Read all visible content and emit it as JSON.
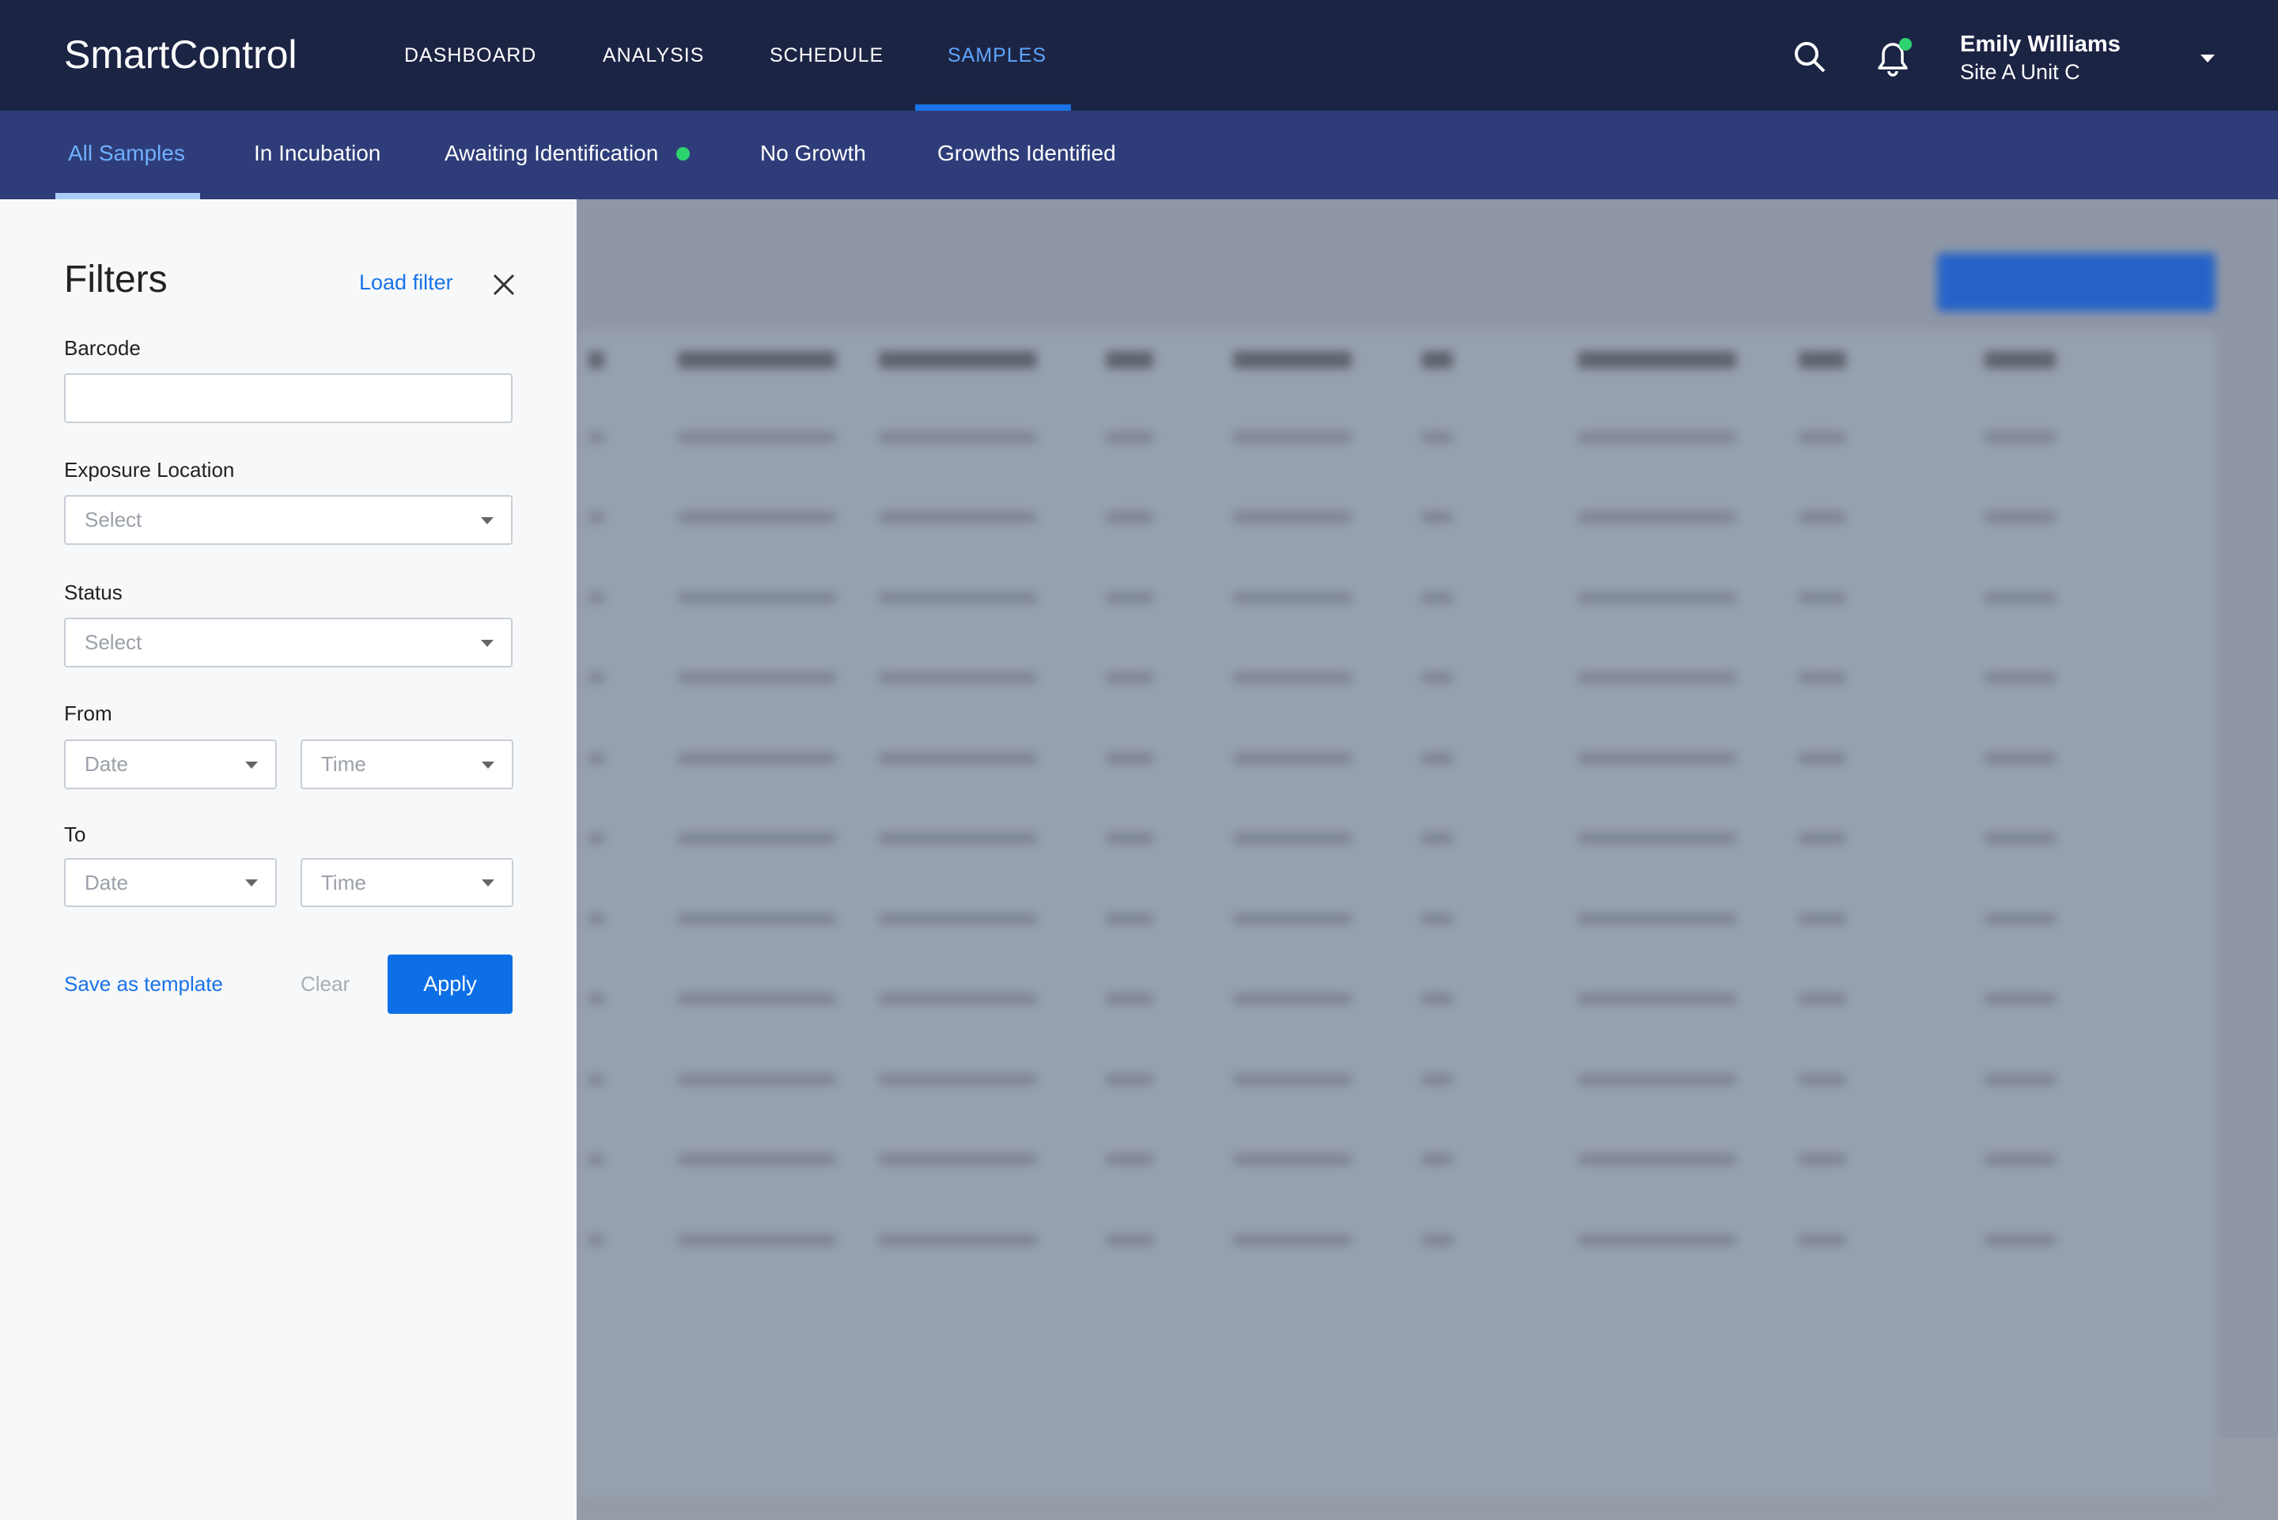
{
  "header": {
    "logo": "SmartControl",
    "nav": [
      "DASHBOARD",
      "ANALYSIS",
      "SCHEDULE",
      "SAMPLES"
    ],
    "user": {
      "name": "Emily Williams",
      "location": "Site A Unit C"
    }
  },
  "tabs": [
    "All Samples",
    "In Incubation",
    "Awaiting Identification",
    "No Growth",
    "Growths Identified"
  ],
  "filters": {
    "title": "Filters",
    "load_filter": "Load filter",
    "barcode": {
      "label": "Barcode"
    },
    "exposure_location": {
      "label": "Exposure Location",
      "placeholder": "Select"
    },
    "status": {
      "label": "Status",
      "placeholder": "Select"
    },
    "from": {
      "label": "From",
      "date": "Date",
      "time": "Time"
    },
    "to": {
      "label": "To",
      "date": "Date",
      "time": "Time"
    },
    "actions": {
      "save": "Save as template",
      "clear": "Clear",
      "apply": "Apply"
    }
  }
}
